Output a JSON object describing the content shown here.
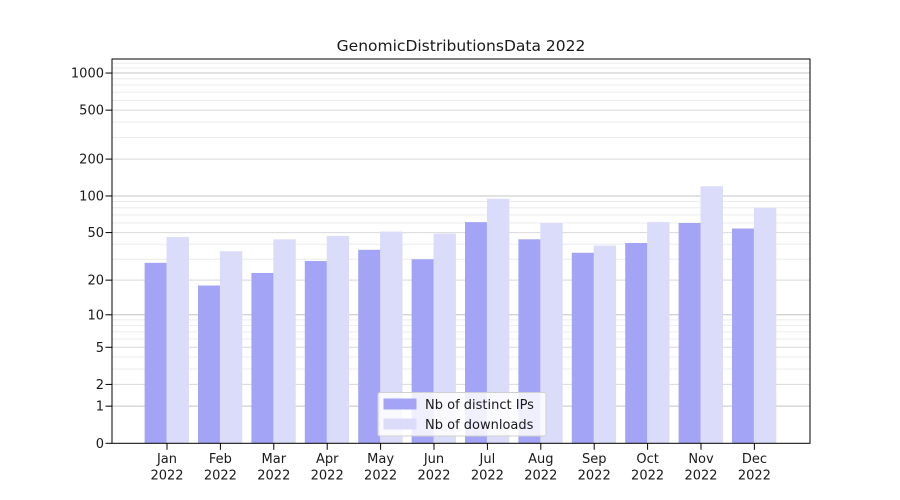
{
  "title": "GenomicDistributionsData 2022",
  "chart_data": {
    "type": "bar",
    "title": "GenomicDistributionsData 2022",
    "yscale": "symlog",
    "ylim": [
      0,
      1300
    ],
    "yticks": [
      0,
      1,
      2,
      5,
      10,
      20,
      50,
      100,
      200,
      500,
      1000
    ],
    "grid": true,
    "legend_position": "lower center",
    "categories": [
      "Jan",
      "Feb",
      "Mar",
      "Apr",
      "May",
      "Jun",
      "Jul",
      "Aug",
      "Sep",
      "Oct",
      "Nov",
      "Dec"
    ],
    "category_year": "2022",
    "series": [
      {
        "name": "Nb of distinct IPs",
        "color": "#a4a4f6",
        "values": [
          28,
          18,
          23,
          29,
          36,
          30,
          61,
          44,
          34,
          41,
          60,
          54
        ]
      },
      {
        "name": "Nb of downloads",
        "color": "#dbdbfa",
        "values": [
          46,
          35,
          44,
          47,
          51,
          49,
          95,
          60,
          39,
          61,
          120,
          80
        ]
      }
    ]
  }
}
